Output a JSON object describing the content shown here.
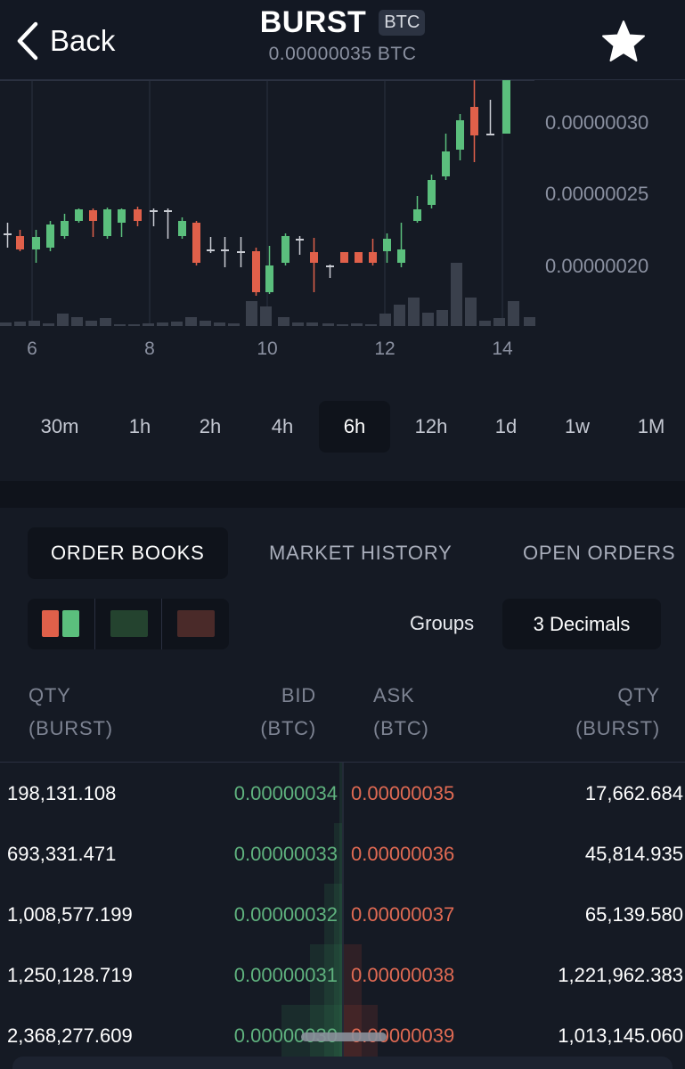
{
  "header": {
    "back_label": "Back",
    "title": "BURST",
    "badge": "BTC",
    "price": "0.00000035 BTC"
  },
  "chart_data": {
    "type": "candlestick",
    "x_ticks": [
      "6",
      "8",
      "10",
      "12",
      "14"
    ],
    "y_ticks": [
      "0.00000030",
      "0.00000025",
      "0.00000020"
    ],
    "colors": {
      "up": "#5bbf7d",
      "down": "#e0604a",
      "doji": "#c9ccd3",
      "volume": "#3a404c",
      "grid": "#2b3140"
    }
  },
  "timeframes": {
    "items": [
      {
        "label": "30m"
      },
      {
        "label": "1h"
      },
      {
        "label": "2h"
      },
      {
        "label": "4h"
      },
      {
        "label": "6h"
      },
      {
        "label": "12h"
      },
      {
        "label": "1d"
      },
      {
        "label": "1w"
      },
      {
        "label": "1M"
      }
    ],
    "active": "6h"
  },
  "tabs": {
    "order_books": "ORDER BOOKS",
    "market_history": "MARKET HISTORY",
    "open_orders": "OPEN ORDERS"
  },
  "controls": {
    "groups_label": "Groups",
    "groups_value": "3 Decimals"
  },
  "columns": {
    "qty_left_1": "QTY",
    "qty_left_2": "(BURST)",
    "bid_1": "BID",
    "bid_2": "(BTC)",
    "ask_1": "ASK",
    "ask_2": "(BTC)",
    "qty_right_1": "QTY",
    "qty_right_2": "(BURST)"
  },
  "orders": [
    {
      "bid_qty": "198,131.108",
      "bid": "0.00000034",
      "ask": "0.00000035",
      "ask_qty": "17,662.684"
    },
    {
      "bid_qty": "693,331.471",
      "bid": "0.00000033",
      "ask": "0.00000036",
      "ask_qty": "45,814.935"
    },
    {
      "bid_qty": "1,008,577.199",
      "bid": "0.00000032",
      "ask": "0.00000037",
      "ask_qty": "65,139.580"
    },
    {
      "bid_qty": "1,250,128.719",
      "bid": "0.00000031",
      "ask": "0.00000038",
      "ask_qty": "1,221,962.383"
    },
    {
      "bid_qty": "2,368,277.609",
      "bid": "0.00000030",
      "ask": "0.00000039",
      "ask_qty": "1,013,145.060"
    }
  ]
}
